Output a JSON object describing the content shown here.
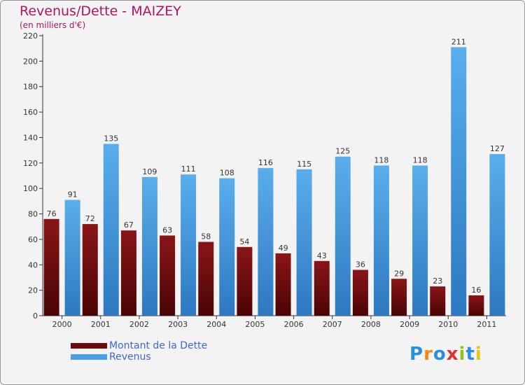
{
  "header": {
    "title": "Revenus/Dette - MAIZEY",
    "subtitle": "(en milliers d'€)"
  },
  "colors": {
    "title": "#b01560",
    "dette_top": "#8a1518",
    "dette_bottom": "#4a0405",
    "revenus_top": "#5aaeec",
    "revenus_bottom": "#2d78c0",
    "legend_text": "#3c68d8"
  },
  "legend": {
    "items": [
      {
        "label": "Montant de la Dette",
        "color": "#6a0a0c"
      },
      {
        "label": "Revenus",
        "color": "#4a9fe4"
      }
    ]
  },
  "logo": {
    "text": "Proxiti",
    "letters": [
      {
        "char": "P",
        "color": "#2a8ee0"
      },
      {
        "char": "r",
        "color": "#f08a10"
      },
      {
        "char": "o",
        "color": "#2a8ee0"
      },
      {
        "char": "x",
        "color": "#e03030"
      },
      {
        "char": "i",
        "color": "#8fc21c"
      },
      {
        "char": "t",
        "color": "#2a8ee0"
      },
      {
        "char": "i",
        "color": "#f0c010"
      }
    ]
  },
  "chart_data": {
    "type": "bar",
    "title": "Revenus/Dette - MAIZEY",
    "subtitle": "(en milliers d'€)",
    "categories": [
      "2000",
      "2001",
      "2002",
      "2003",
      "2004",
      "2005",
      "2006",
      "2007",
      "2008",
      "2009",
      "2010",
      "2011"
    ],
    "series": [
      {
        "name": "Montant de la Dette",
        "values": [
          76,
          72,
          67,
          63,
          58,
          54,
          49,
          43,
          36,
          29,
          23,
          16
        ]
      },
      {
        "name": "Revenus",
        "values": [
          91,
          135,
          109,
          111,
          108,
          116,
          115,
          125,
          118,
          118,
          211,
          127
        ]
      }
    ],
    "ylim": [
      0,
      220
    ],
    "yticks": [
      0,
      20,
      40,
      60,
      80,
      100,
      120,
      140,
      160,
      180,
      200,
      220
    ],
    "grid": false,
    "legend_position": "bottom-left",
    "data_labels": true
  }
}
